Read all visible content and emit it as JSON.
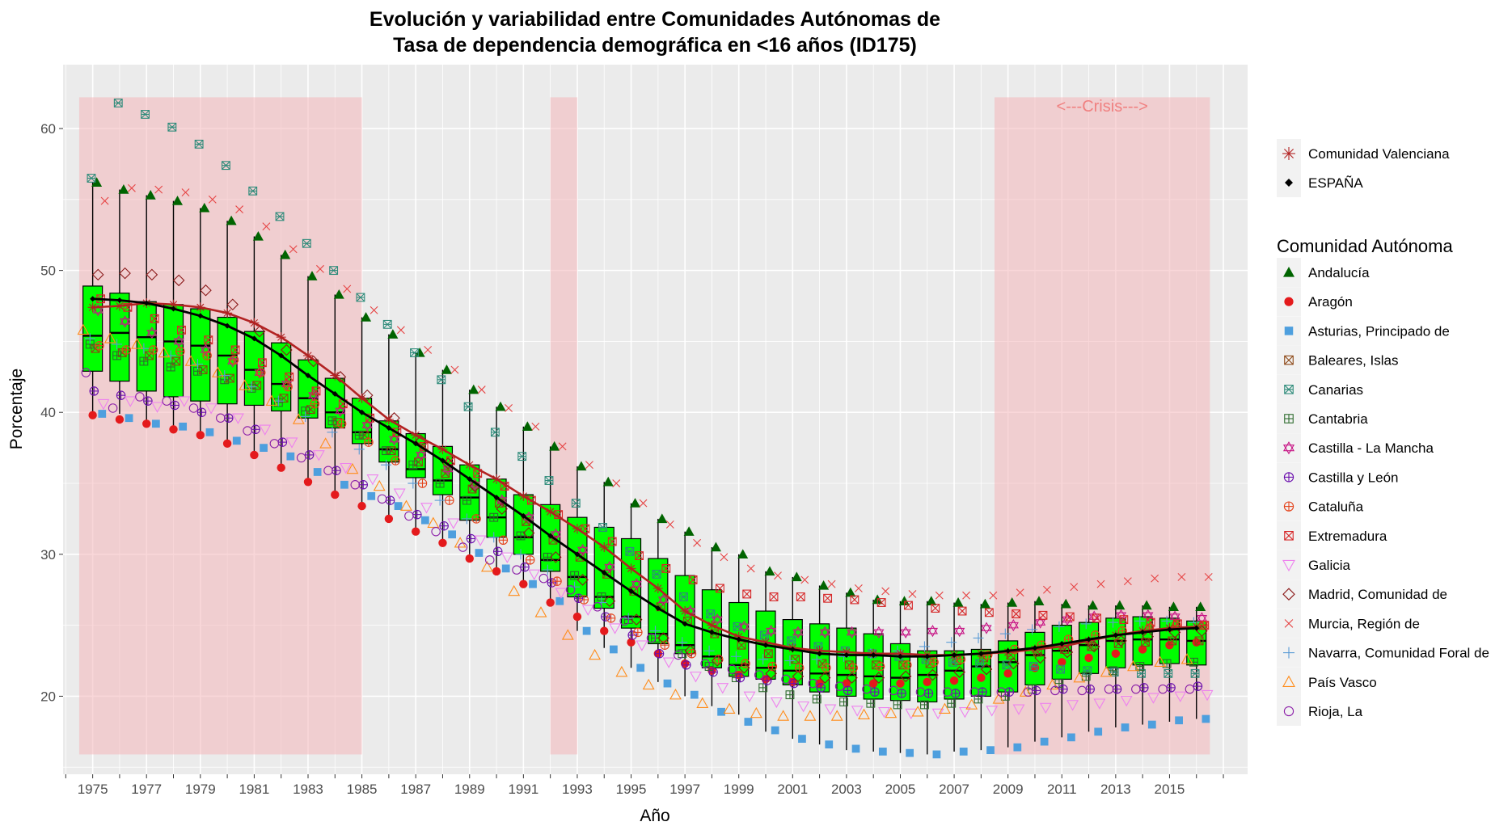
{
  "chart_data": {
    "type": "boxplot",
    "title_line1": "Evolución y variabilidad entre Comunidades Autónomas de",
    "title_line2": "Tasa de dependencia demográfica en <16 años (ID175)",
    "xlabel": "Año",
    "ylabel": "Porcentaje",
    "ylim": [
      14.5,
      64.5
    ],
    "yticks": [
      20,
      30,
      40,
      50,
      60
    ],
    "xlim": [
      1973.9,
      2017.9
    ],
    "xtick_labels": [
      "1975",
      "1977",
      "1979",
      "1981",
      "1983",
      "1985",
      "1987",
      "1989",
      "1991",
      "1993",
      "1995",
      "1997",
      "1999",
      "2001",
      "2003",
      "2005",
      "2007",
      "2009",
      "2011",
      "2013",
      "2015"
    ],
    "crisis_label": "<---Crisis--->",
    "shaded_periods": [
      [
        1974.5,
        1985
      ],
      [
        1992,
        1993
      ],
      [
        2008.5,
        2016.5
      ]
    ],
    "colors": {
      "background": "#ebebeb",
      "grid": "#ffffff",
      "box_fill": "#00ff00",
      "shade": "#f4b6b9",
      "crisis_text": "#f08080",
      "espana_line": "#000000",
      "valenciana_line": "#b22222"
    },
    "years": [
      1975,
      1976,
      1977,
      1978,
      1979,
      1980,
      1981,
      1982,
      1983,
      1984,
      1985,
      1986,
      1987,
      1988,
      1989,
      1990,
      1991,
      1992,
      1993,
      1994,
      1995,
      1996,
      1997,
      1998,
      1999,
      2000,
      2001,
      2002,
      2003,
      2004,
      2005,
      2006,
      2007,
      2008,
      2009,
      2010,
      2011,
      2012,
      2013,
      2014,
      2015,
      2016
    ],
    "boxes": {
      "q1": [
        42.9,
        42.2,
        41.5,
        41.1,
        40.8,
        40.6,
        40.5,
        40.1,
        39.6,
        38.9,
        37.8,
        36.5,
        35.4,
        34.2,
        32.4,
        31.2,
        30.0,
        28.8,
        27.0,
        26.2,
        24.8,
        23.7,
        23.0,
        22.0,
        21.4,
        21.2,
        20.8,
        20.3,
        20.0,
        19.8,
        19.7,
        19.6,
        19.8,
        20.0,
        20.3,
        20.8,
        21.2,
        21.6,
        22.0,
        22.2,
        22.3,
        22.2
      ],
      "median": [
        45.4,
        45.6,
        45.3,
        45.0,
        44.7,
        44.0,
        43.0,
        42.0,
        41.0,
        40.0,
        38.6,
        37.4,
        36.0,
        35.2,
        34.0,
        32.6,
        31.2,
        29.6,
        28.4,
        27.0,
        25.6,
        24.4,
        23.6,
        22.8,
        22.2,
        22.0,
        21.8,
        21.6,
        21.5,
        21.4,
        21.3,
        21.5,
        21.8,
        22.1,
        22.4,
        22.9,
        23.2,
        23.6,
        23.9,
        24.0,
        24.0,
        23.9
      ],
      "q3": [
        48.9,
        48.4,
        47.8,
        47.6,
        47.3,
        46.7,
        45.7,
        44.9,
        43.7,
        42.4,
        41.0,
        39.4,
        38.5,
        37.6,
        36.3,
        35.3,
        34.2,
        33.5,
        32.6,
        31.9,
        31.1,
        29.7,
        28.5,
        27.5,
        26.6,
        26.0,
        25.4,
        25.1,
        24.8,
        24.4,
        23.7,
        23.2,
        23.2,
        23.3,
        23.9,
        24.5,
        25.0,
        25.2,
        25.5,
        25.6,
        25.5,
        25.3
      ],
      "low": [
        39.8,
        39.9,
        39.2,
        39.0,
        38.6,
        38.0,
        37.0,
        36.1,
        35.1,
        34.2,
        33.4,
        32.5,
        31.6,
        30.8,
        30.0,
        28.8,
        28.0,
        26.5,
        24.6,
        23.4,
        22.0,
        21.0,
        20.0,
        19.3,
        18.7,
        17.5,
        17.0,
        16.6,
        16.2,
        16.1,
        16.0,
        15.9,
        16.1,
        16.2,
        16.4,
        16.8,
        17.1,
        17.5,
        17.8,
        18.0,
        18.2,
        18.4
      ],
      "high": [
        56.2,
        55.7,
        55.3,
        54.9,
        54.4,
        53.5,
        52.4,
        51.1,
        49.6,
        48.3,
        46.7,
        45.5,
        44.2,
        43.0,
        41.6,
        40.4,
        39.0,
        37.6,
        36.2,
        35.1,
        33.6,
        32.5,
        31.6,
        30.5,
        30.0,
        28.8,
        28.4,
        27.8,
        27.3,
        26.8,
        26.7,
        26.7,
        26.6,
        26.5,
        26.6,
        26.7,
        26.5,
        26.4,
        26.4,
        26.4,
        26.3,
        26.3
      ]
    },
    "series": [
      {
        "name": "Comunidad Valenciana",
        "values": [
          47.4,
          47.5,
          47.7,
          47.6,
          47.4,
          47.0,
          46.3,
          45.3,
          44.0,
          42.6,
          41.0,
          39.5,
          38.4,
          37.4,
          36.3,
          35.3,
          34.1,
          33.0,
          31.8,
          30.5,
          29.0,
          27.6,
          26.0,
          25.0,
          24.2,
          23.8,
          23.4,
          23.2,
          23.1,
          23.0,
          23.0,
          22.9,
          22.9,
          23.0,
          23.1,
          23.3,
          23.5,
          23.9,
          24.3,
          24.6,
          24.8,
          24.9
        ]
      },
      {
        "name": "ESPAÑA",
        "values": [
          48.0,
          47.9,
          47.7,
          47.3,
          46.8,
          46.1,
          45.2,
          44.0,
          42.6,
          41.3,
          40.0,
          38.9,
          37.8,
          36.6,
          35.3,
          34.0,
          32.7,
          31.3,
          30.0,
          28.7,
          27.4,
          26.2,
          25.1,
          24.5,
          24.0,
          23.6,
          23.3,
          23.0,
          22.9,
          22.9,
          22.8,
          22.8,
          22.9,
          23.0,
          23.2,
          23.4,
          23.7,
          24.0,
          24.3,
          24.5,
          24.7,
          24.8
        ]
      }
    ],
    "regions": [
      {
        "name": "Andalucía",
        "shape": "triangle-filled",
        "color": "#006400",
        "dx": 0.15,
        "values": [
          56.2,
          55.7,
          55.3,
          54.9,
          54.4,
          53.5,
          52.4,
          51.1,
          49.6,
          48.3,
          46.7,
          45.5,
          44.2,
          43.0,
          41.6,
          40.4,
          39.0,
          37.6,
          36.2,
          35.1,
          33.6,
          32.5,
          31.6,
          30.5,
          30.0,
          28.8,
          28.4,
          27.8,
          27.3,
          26.8,
          26.7,
          26.7,
          26.6,
          26.5,
          26.6,
          26.7,
          26.5,
          26.4,
          26.4,
          26.4,
          26.3,
          26.3
        ]
      },
      {
        "name": "Aragón",
        "shape": "circle-filled",
        "color": "#e41a1c",
        "dx": 0.0,
        "values": [
          39.8,
          39.5,
          39.2,
          38.8,
          38.4,
          37.8,
          37.0,
          36.1,
          35.1,
          34.2,
          33.4,
          32.5,
          31.6,
          30.8,
          29.7,
          28.8,
          27.9,
          26.6,
          25.6,
          24.6,
          23.8,
          23.0,
          22.3,
          21.8,
          21.5,
          21.2,
          21.0,
          20.9,
          20.9,
          20.9,
          20.9,
          21.0,
          21.1,
          21.3,
          21.6,
          22.0,
          22.4,
          22.7,
          23.0,
          23.3,
          23.6,
          23.8
        ]
      },
      {
        "name": "Asturias, Principado de",
        "shape": "square-filled",
        "color": "#4e9fde",
        "dx": 0.35,
        "values": [
          39.9,
          39.6,
          39.2,
          39.0,
          38.6,
          38.0,
          37.5,
          36.9,
          35.8,
          34.9,
          34.1,
          33.4,
          32.4,
          31.4,
          30.1,
          29.0,
          27.9,
          26.7,
          24.6,
          23.3,
          22.0,
          20.9,
          20.1,
          18.9,
          18.2,
          17.6,
          17.0,
          16.6,
          16.3,
          16.1,
          16.0,
          15.9,
          16.1,
          16.2,
          16.4,
          16.8,
          17.1,
          17.5,
          17.8,
          18.0,
          18.3,
          18.4
        ]
      },
      {
        "name": "Baleares, Islas",
        "shape": "square-x",
        "color": "#8b4513",
        "dx": 0.1,
        "values": [
          44.5,
          44.2,
          44.0,
          43.6,
          43.0,
          42.4,
          41.9,
          41.0,
          40.2,
          39.3,
          38.4,
          37.3,
          36.5,
          35.7,
          34.6,
          33.6,
          32.3,
          31.0,
          29.8,
          28.6,
          27.4,
          26.3,
          25.3,
          24.4,
          23.6,
          23.0,
          22.6,
          22.3,
          22.2,
          22.2,
          22.2,
          22.3,
          22.5,
          22.7,
          22.9,
          23.1,
          23.3,
          23.5,
          23.7,
          23.8,
          23.9,
          23.9
        ]
      },
      {
        "name": "Canarias",
        "shape": "square-star",
        "color": "#2e8b7a",
        "dx": -0.05,
        "values": [
          56.5,
          61.8,
          61.0,
          60.1,
          58.9,
          57.4,
          55.6,
          53.8,
          51.9,
          50.0,
          48.1,
          46.2,
          44.2,
          42.3,
          40.4,
          38.6,
          36.9,
          35.2,
          33.6,
          31.9,
          30.2,
          28.6,
          27.0,
          25.8,
          24.9,
          24.3,
          23.9,
          23.5,
          23.2,
          23.0,
          22.8,
          22.6,
          22.4,
          22.3,
          22.2,
          22.1,
          21.9,
          21.8,
          21.7,
          21.6,
          21.6,
          21.6
        ]
      },
      {
        "name": "Cantabria",
        "shape": "square-plus",
        "color": "#2e6b2e",
        "dx": -0.1,
        "values": [
          44.8,
          44.0,
          43.6,
          43.2,
          42.9,
          42.3,
          41.7,
          40.7,
          40.1,
          39.4,
          38.4,
          37.3,
          36.3,
          35.0,
          33.8,
          32.6,
          31.3,
          29.8,
          28.5,
          27.0,
          25.4,
          24.1,
          23.0,
          22.1,
          21.3,
          20.6,
          20.1,
          19.8,
          19.6,
          19.5,
          19.4,
          19.4,
          19.5,
          19.8,
          20.0,
          20.5,
          20.9,
          21.4,
          21.8,
          22.1,
          22.3,
          22.4
        ]
      },
      {
        "name": "Castilla - La Mancha",
        "shape": "hexagram",
        "color": "#c71585",
        "dx": 0.2,
        "values": [
          47.2,
          46.4,
          45.6,
          45.0,
          44.4,
          43.6,
          42.8,
          42.0,
          41.2,
          40.1,
          39.1,
          38.1,
          37.0,
          36.0,
          34.9,
          33.8,
          32.6,
          31.4,
          30.3,
          29.1,
          27.9,
          26.8,
          26.0,
          25.4,
          24.9,
          24.6,
          24.5,
          24.5,
          24.5,
          24.5,
          24.5,
          24.6,
          24.6,
          24.8,
          25.0,
          25.2,
          25.4,
          25.6,
          25.7,
          25.7,
          25.6,
          25.5
        ]
      },
      {
        "name": "Castilla y León",
        "shape": "circle-plus",
        "color": "#6a0dad",
        "dx": 0.05,
        "values": [
          41.5,
          41.2,
          40.8,
          40.5,
          40.0,
          39.6,
          38.8,
          37.9,
          37.0,
          35.9,
          34.9,
          33.8,
          32.8,
          32.0,
          31.1,
          30.2,
          29.1,
          28.0,
          26.9,
          25.6,
          24.3,
          23.0,
          22.2,
          21.7,
          21.3,
          21.1,
          20.9,
          20.6,
          20.4,
          20.3,
          20.2,
          20.2,
          20.2,
          20.3,
          20.3,
          20.4,
          20.5,
          20.5,
          20.5,
          20.6,
          20.6,
          20.7
        ]
      },
      {
        "name": "Cataluña",
        "shape": "circle-plus",
        "color": "#e4421a",
        "dx": 0.25,
        "values": [
          44.7,
          44.4,
          44.4,
          44.3,
          44.0,
          43.7,
          42.8,
          41.8,
          40.6,
          39.2,
          37.9,
          36.6,
          35.0,
          33.8,
          32.5,
          31.0,
          29.6,
          28.1,
          26.8,
          25.5,
          24.5,
          23.6,
          23.0,
          22.6,
          22.3,
          22.1,
          22.0,
          22.0,
          22.0,
          22.1,
          22.2,
          22.4,
          22.6,
          22.9,
          23.3,
          23.6,
          24.0,
          24.3,
          24.6,
          24.8,
          25.0,
          25.0
        ]
      },
      {
        "name": "Extremadura",
        "shape": "square-x",
        "color": "#d62728",
        "dx": 0.3,
        "values": [
          48.0,
          47.4,
          46.6,
          45.8,
          45.1,
          44.4,
          43.5,
          42.5,
          41.5,
          40.6,
          39.6,
          38.6,
          37.6,
          36.6,
          35.7,
          34.8,
          33.8,
          32.8,
          31.8,
          30.9,
          29.9,
          29.0,
          28.2,
          27.6,
          27.2,
          27.0,
          27.0,
          26.9,
          26.8,
          26.6,
          26.4,
          26.2,
          26.0,
          25.9,
          25.8,
          25.7,
          25.6,
          25.5,
          25.4,
          25.2,
          25.1,
          25.0
        ]
      },
      {
        "name": "Galicia",
        "shape": "triangle-down",
        "color": "#ee82ee",
        "dx": 0.4,
        "values": [
          40.6,
          40.8,
          40.4,
          40.8,
          40.3,
          39.6,
          38.8,
          37.9,
          37.0,
          36.1,
          35.3,
          34.3,
          33.3,
          32.2,
          31.0,
          29.8,
          28.6,
          27.3,
          26.1,
          24.8,
          23.6,
          22.4,
          21.4,
          20.6,
          20.0,
          19.6,
          19.3,
          19.1,
          19.0,
          18.9,
          18.8,
          18.8,
          18.9,
          19.0,
          19.1,
          19.2,
          19.4,
          19.5,
          19.7,
          19.9,
          20.0,
          20.1
        ]
      },
      {
        "name": "Madrid, Comunidad de",
        "shape": "diamond",
        "color": "#8b1a1a",
        "dx": 0.2,
        "values": [
          49.7,
          49.8,
          49.7,
          49.3,
          48.6,
          47.6,
          45.7,
          44.4,
          43.6,
          42.5,
          41.2,
          39.6,
          38.0,
          36.4,
          34.8,
          33.2,
          31.5,
          29.8,
          28.2,
          26.7,
          25.4,
          24.1,
          23.2,
          22.5,
          22.0,
          21.6,
          21.4,
          21.3,
          21.3,
          21.3,
          21.4,
          21.5,
          21.7,
          21.9,
          22.3,
          22.7,
          23.1,
          23.5,
          23.9,
          24.2,
          24.5,
          24.6
        ]
      },
      {
        "name": "Murcia, Región de",
        "shape": "x",
        "color": "#e64545",
        "dx": 0.45,
        "values": [
          54.9,
          55.8,
          55.7,
          55.5,
          55.0,
          54.3,
          53.1,
          51.5,
          50.1,
          48.7,
          47.2,
          45.8,
          44.4,
          43.0,
          41.6,
          40.3,
          39.0,
          37.6,
          36.3,
          35.0,
          33.6,
          32.1,
          30.8,
          29.8,
          29.0,
          28.5,
          28.2,
          27.9,
          27.6,
          27.4,
          27.2,
          27.1,
          27.1,
          27.1,
          27.3,
          27.5,
          27.7,
          27.9,
          28.1,
          28.3,
          28.4,
          28.4
        ]
      },
      {
        "name": "Navarra, Comunidad Foral de",
        "shape": "plus",
        "color": "#5a9bd5",
        "dx": -0.1,
        "values": [
          45.2,
          44.8,
          44.5,
          44.0,
          43.4,
          42.6,
          41.8,
          40.8,
          39.7,
          38.6,
          37.4,
          36.3,
          35.0,
          33.8,
          32.5,
          31.2,
          30.0,
          28.9,
          27.7,
          26.6,
          25.5,
          24.6,
          23.8,
          23.2,
          22.8,
          22.6,
          22.5,
          22.6,
          22.8,
          23.0,
          23.2,
          23.5,
          23.8,
          24.1,
          24.4,
          24.7,
          24.9,
          25.1,
          25.2,
          25.3,
          25.3,
          25.2
        ]
      },
      {
        "name": "País Vasco",
        "shape": "triangle-open",
        "color": "#ff8c1a",
        "dx": -0.35,
        "values": [
          45.8,
          45.2,
          44.8,
          44.2,
          43.6,
          42.8,
          41.9,
          40.8,
          39.5,
          37.8,
          36.0,
          34.8,
          33.4,
          32.2,
          30.8,
          29.1,
          27.4,
          25.9,
          24.3,
          22.9,
          21.7,
          20.8,
          20.1,
          19.5,
          19.1,
          18.8,
          18.6,
          18.6,
          18.6,
          18.7,
          18.8,
          18.9,
          19.1,
          19.4,
          19.8,
          20.3,
          20.8,
          21.3,
          21.7,
          22.1,
          22.4,
          22.6
        ]
      },
      {
        "name": "Rioja, La",
        "shape": "circle-open",
        "color": "#8b1fa8",
        "dx": -0.25,
        "values": [
          42.8,
          40.3,
          41.1,
          40.8,
          40.3,
          39.6,
          38.7,
          37.8,
          36.8,
          35.9,
          34.9,
          33.9,
          32.7,
          31.6,
          30.5,
          29.6,
          28.9,
          28.3,
          27.5,
          26.3,
          25.3,
          24.1,
          22.9,
          22.3,
          21.9,
          21.5,
          21.2,
          20.9,
          20.7,
          20.5,
          20.4,
          20.3,
          20.3,
          20.3,
          20.3,
          20.3,
          20.4,
          20.4,
          20.5,
          20.5,
          20.5,
          20.5
        ]
      }
    ],
    "legend": {
      "lines_title": "",
      "regions_title": "Comunidad Autónoma",
      "placement": "right"
    }
  }
}
